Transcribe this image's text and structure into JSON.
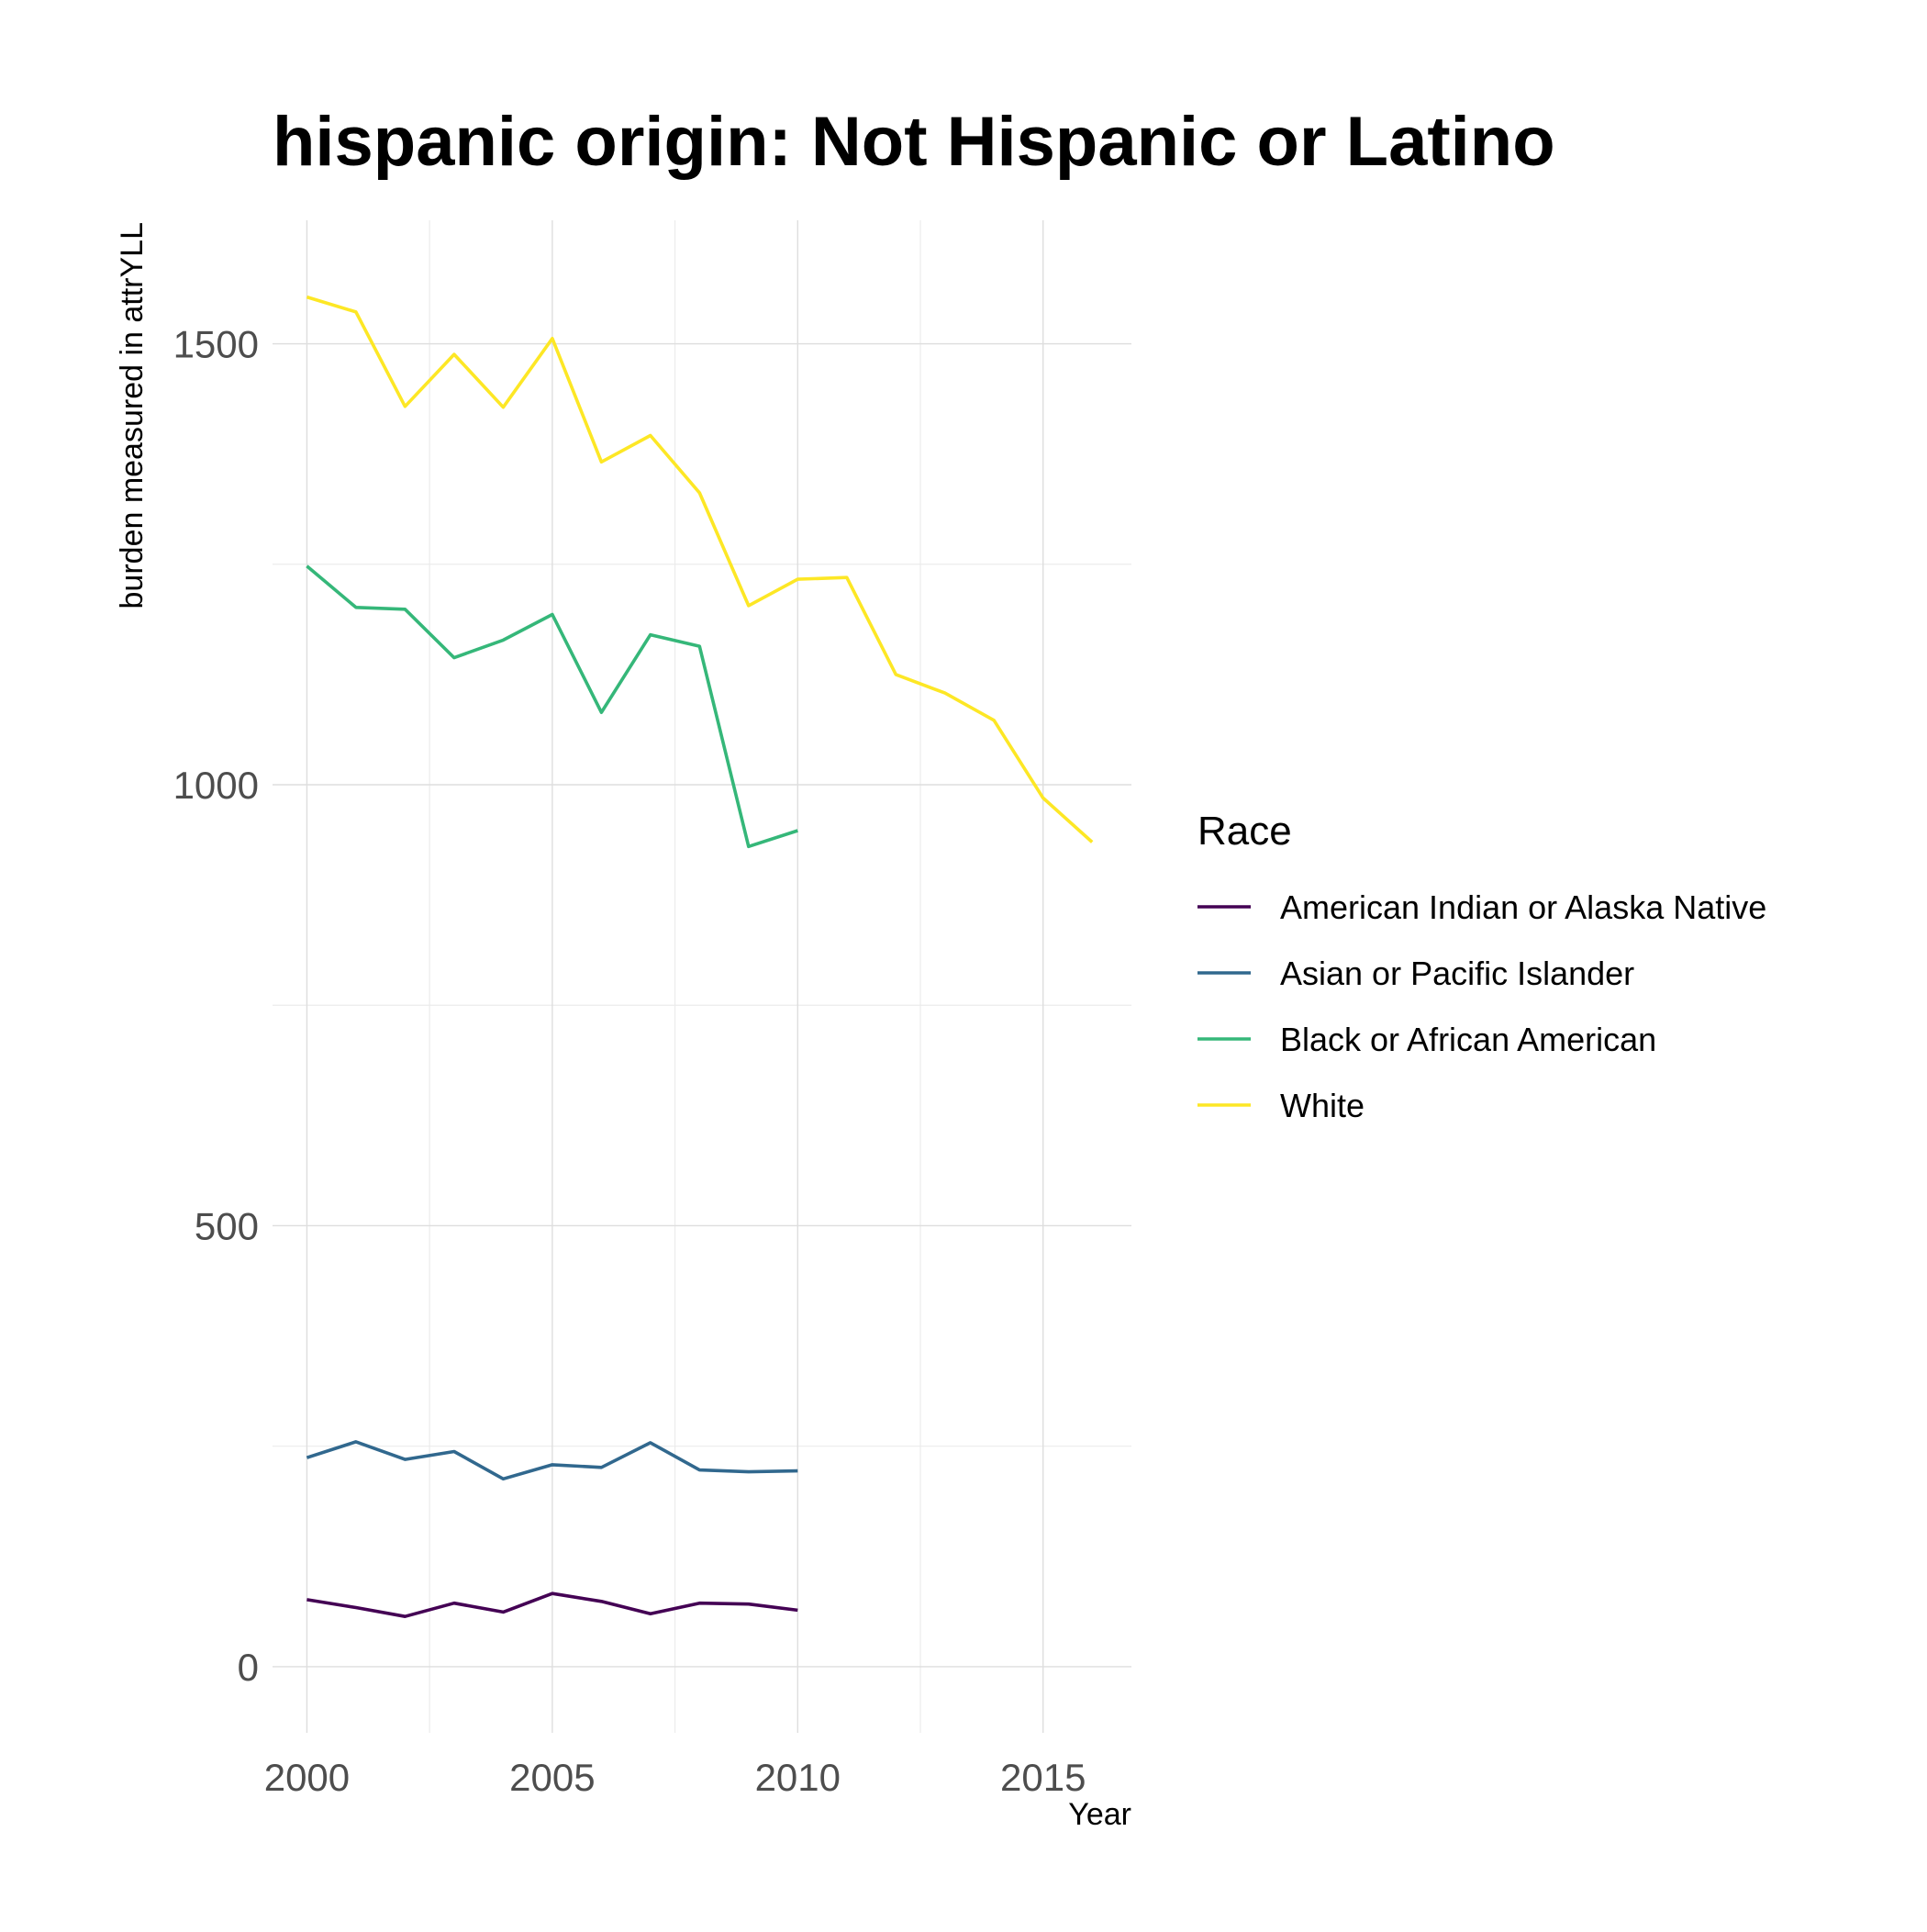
{
  "chart_data": {
    "type": "line",
    "title": "hispanic origin: Not Hispanic or Latino",
    "xlabel": "Year",
    "ylabel": "burden measured in attrYLL",
    "xlim": [
      1999.3,
      2016.8
    ],
    "ylim": [
      -75,
      1640
    ],
    "x_ticks": [
      2000,
      2005,
      2010,
      2015
    ],
    "x_tick_labels": [
      "2000",
      "2005",
      "2010",
      "2015"
    ],
    "x_minor_ticks": [
      2002.5,
      2007.5,
      2012.5
    ],
    "y_ticks": [
      0,
      500,
      1000,
      1500
    ],
    "y_tick_labels": [
      "0",
      "500",
      "1000",
      "1500"
    ],
    "y_minor_ticks": [
      250,
      750,
      1250
    ],
    "grid": true,
    "legend": {
      "title": "Race",
      "position": "right"
    },
    "series": [
      {
        "name": "American Indian or Alaska Native",
        "color": "#440154",
        "x": [
          2000,
          2001,
          2002,
          2003,
          2004,
          2005,
          2006,
          2007,
          2008,
          2009,
          2010
        ],
        "values": [
          76,
          67,
          57,
          72,
          62,
          83,
          74,
          60,
          72,
          71,
          64
        ]
      },
      {
        "name": "Asian or Pacific Islander",
        "color": "#31688e",
        "x": [
          2000,
          2001,
          2002,
          2003,
          2004,
          2005,
          2006,
          2007,
          2008,
          2009,
          2010
        ],
        "values": [
          237,
          255,
          235,
          244,
          213,
          229,
          226,
          254,
          223,
          221,
          222
        ]
      },
      {
        "name": "Black or African American",
        "color": "#35b779",
        "x": [
          2000,
          2001,
          2002,
          2003,
          2004,
          2005,
          2006,
          2007,
          2008,
          2009,
          2010
        ],
        "values": [
          1248,
          1201,
          1199,
          1144,
          1164,
          1193,
          1082,
          1170,
          1157,
          930,
          948
        ]
      },
      {
        "name": "White",
        "color": "#fde725",
        "x": [
          2000,
          2001,
          2002,
          2003,
          2004,
          2005,
          2006,
          2007,
          2008,
          2009,
          2010,
          2011,
          2012,
          2013,
          2014,
          2015,
          2016
        ],
        "values": [
          1553,
          1536,
          1429,
          1488,
          1428,
          1506,
          1366,
          1396,
          1331,
          1203,
          1233,
          1235,
          1125,
          1104,
          1073,
          985,
          935
        ]
      }
    ]
  }
}
